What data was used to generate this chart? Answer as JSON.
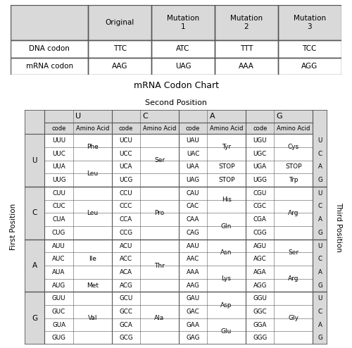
{
  "top_table": {
    "headers": [
      "",
      "Original",
      "Mutation\n1",
      "Mutation\n2",
      "Mutation\n3"
    ],
    "rows": [
      [
        "DNA codon",
        "TTC",
        "ATC",
        "TTT",
        "TCC"
      ],
      [
        "mRNA codon",
        "AAG",
        "UAG",
        "AAA",
        "AGG"
      ]
    ],
    "header_bg": "#d9d9d9",
    "cell_bg": "#ffffff",
    "border_color": "#555555"
  },
  "codon_chart": {
    "title": "mRNA Codon Chart",
    "subtitle": "Second Position",
    "first_position_label": "First Position",
    "third_position_label": "Third Position",
    "second_positions": [
      "U",
      "C",
      "A",
      "G"
    ],
    "first_positions": [
      "U",
      "C",
      "A",
      "G"
    ],
    "third_positions": [
      "U",
      "C",
      "A",
      "G"
    ],
    "header_bg": "#d9d9d9",
    "cell_bg": "#ffffff",
    "border_color": "#555555",
    "data": {
      "U": {
        "U": {
          "codes": [
            "UUU",
            "UUC",
            "UUA",
            "UUG"
          ],
          "amino": [
            [
              "Phe",
              0,
              1
            ],
            [
              "Leu",
              2,
              3
            ]
          ]
        },
        "C": {
          "codes": [
            "UCU",
            "UCC",
            "UCA",
            "UCG"
          ],
          "amino": [
            [
              "Ser",
              0,
              3
            ]
          ]
        },
        "A": {
          "codes": [
            "UAU",
            "UAC",
            "UAA",
            "UAG"
          ],
          "amino": [
            [
              "Tyr",
              0,
              1
            ],
            [
              "STOP",
              2,
              2
            ],
            [
              "STOP",
              3,
              3
            ]
          ]
        },
        "G": {
          "codes": [
            "UGU",
            "UGC",
            "UGA",
            "UGG"
          ],
          "amino": [
            [
              "Cys",
              0,
              1
            ],
            [
              "STOP",
              2,
              2
            ],
            [
              "Trp",
              3,
              3
            ]
          ]
        }
      },
      "C": {
        "U": {
          "codes": [
            "CUU",
            "CUC",
            "CUA",
            "CUG"
          ],
          "amino": [
            [
              "Leu",
              0,
              3
            ]
          ]
        },
        "C": {
          "codes": [
            "CCU",
            "CCC",
            "CCA",
            "CCG"
          ],
          "amino": [
            [
              "Pro",
              0,
              3
            ]
          ]
        },
        "A": {
          "codes": [
            "CAU",
            "CAC",
            "CAA",
            "CAG"
          ],
          "amino": [
            [
              "His",
              0,
              1
            ],
            [
              "Gln",
              2,
              3
            ]
          ]
        },
        "G": {
          "codes": [
            "CGU",
            "CGC",
            "CGA",
            "CGG"
          ],
          "amino": [
            [
              "Arg",
              0,
              3
            ]
          ]
        }
      },
      "A": {
        "U": {
          "codes": [
            "AUU",
            "AUC",
            "AUA",
            "AUG"
          ],
          "amino": [
            [
              "Ile",
              0,
              2
            ],
            [
              "Met",
              3,
              3
            ]
          ]
        },
        "C": {
          "codes": [
            "ACU",
            "ACC",
            "ACA",
            "ACG"
          ],
          "amino": [
            [
              "Thr",
              0,
              3
            ]
          ]
        },
        "A": {
          "codes": [
            "AAU",
            "AAC",
            "AAA",
            "AAG"
          ],
          "amino": [
            [
              "Asn",
              0,
              1
            ],
            [
              "Lys",
              2,
              3
            ]
          ]
        },
        "G": {
          "codes": [
            "AGU",
            "AGC",
            "AGA",
            "AGG"
          ],
          "amino": [
            [
              "Ser",
              0,
              1
            ],
            [
              "Arg",
              2,
              3
            ]
          ]
        }
      },
      "G": {
        "U": {
          "codes": [
            "GUU",
            "GUC",
            "GUA",
            "GUG"
          ],
          "amino": [
            [
              "Val",
              0,
              3
            ]
          ]
        },
        "C": {
          "codes": [
            "GCU",
            "GCC",
            "GCA",
            "GCG"
          ],
          "amino": [
            [
              "Ala",
              0,
              3
            ]
          ]
        },
        "A": {
          "codes": [
            "GAU",
            "GAC",
            "GAA",
            "GAG"
          ],
          "amino": [
            [
              "Asp",
              0,
              1
            ],
            [
              "Glu",
              2,
              3
            ]
          ]
        },
        "G": {
          "codes": [
            "GGU",
            "GGC",
            "GGA",
            "GGG"
          ],
          "amino": [
            [
              "Gly",
              0,
              3
            ]
          ]
        }
      }
    }
  },
  "background_color": "#ffffff"
}
